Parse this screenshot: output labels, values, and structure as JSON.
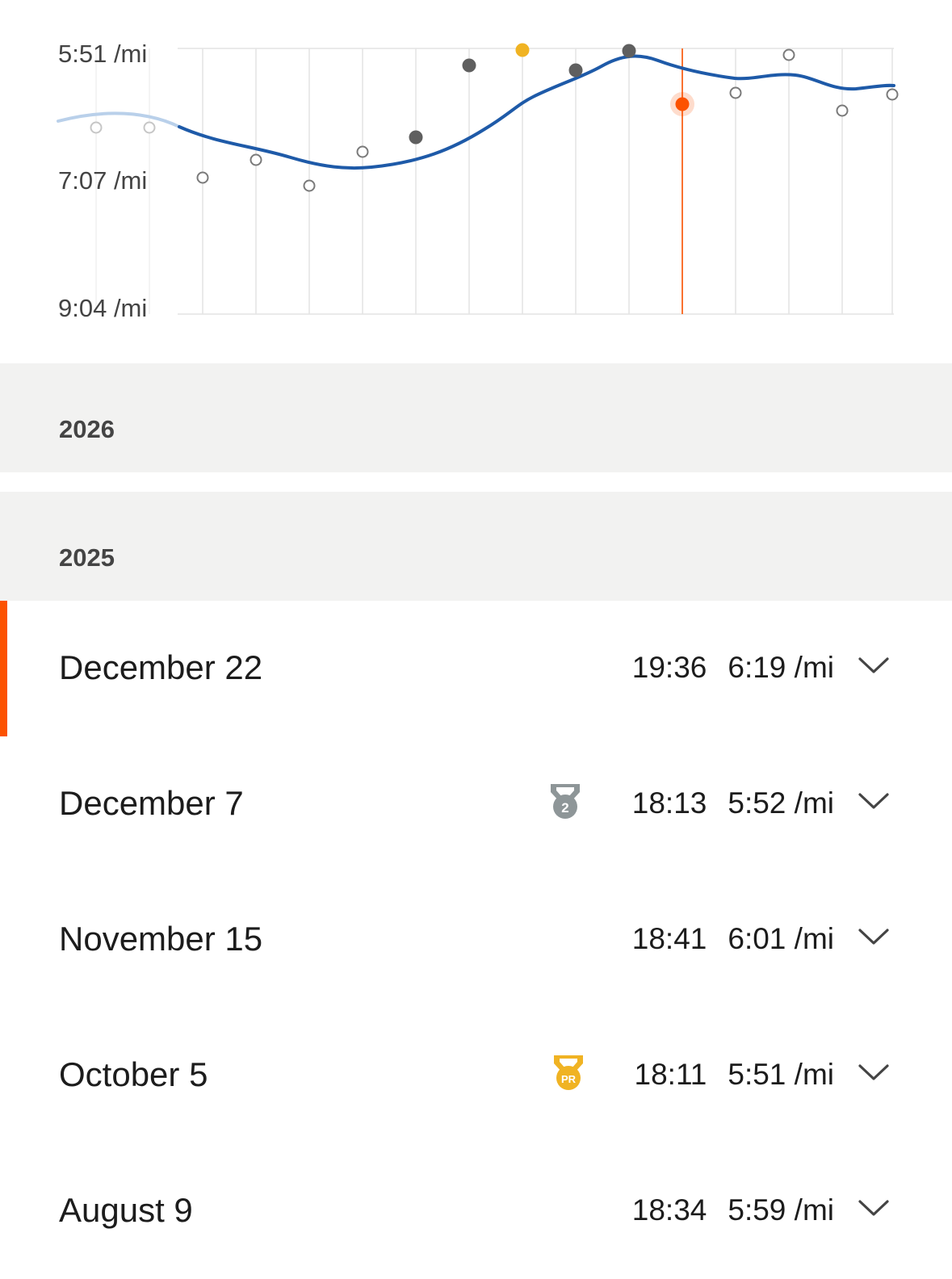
{
  "chart": {
    "y_labels": [
      "5:51 /mi",
      "7:07 /mi",
      "9:04 /mi"
    ],
    "colors": {
      "trend_line": "#1e5aa8",
      "trend_line_faded": "#b9d0ea",
      "grid": "#e4e4e4",
      "selected": "#fc5200",
      "pr_point": "#f0b323",
      "filled_point": "#5f5f5f",
      "open_point": "#7a7a7a"
    }
  },
  "chart_data": {
    "type": "scatter",
    "y_tick_labels": [
      "5:51 /mi",
      "7:07 /mi",
      "9:04 /mi"
    ],
    "y_axis_inverted": true,
    "grid": true,
    "points": [
      {
        "kind": "faded-open"
      },
      {
        "kind": "faded-open"
      },
      {
        "kind": "open"
      },
      {
        "kind": "open"
      },
      {
        "kind": "open"
      },
      {
        "kind": "open"
      },
      {
        "kind": "filled"
      },
      {
        "kind": "filled"
      },
      {
        "kind": "pr"
      },
      {
        "kind": "filled"
      },
      {
        "kind": "filled"
      },
      {
        "kind": "selected"
      },
      {
        "kind": "open"
      },
      {
        "kind": "open"
      },
      {
        "kind": "open"
      },
      {
        "kind": "open"
      }
    ],
    "series": [
      {
        "name": "",
        "type": "smoothed-trend-line"
      }
    ]
  },
  "years": [
    "2026",
    "2025"
  ],
  "efforts": [
    {
      "date": "December 22",
      "time": "19:36",
      "pace": "6:19 /mi",
      "medal": "",
      "selected": true
    },
    {
      "date": "December 7",
      "time": "18:13",
      "pace": "5:52 /mi",
      "medal": "2",
      "selected": false
    },
    {
      "date": "November 15",
      "time": "18:41",
      "pace": "6:01 /mi",
      "medal": "",
      "selected": false
    },
    {
      "date": "October 5",
      "time": "18:11",
      "pace": "5:51 /mi",
      "medal": "PR",
      "selected": false
    },
    {
      "date": "August 9",
      "time": "18:34",
      "pace": "5:59 /mi",
      "medal": "",
      "selected": false
    }
  ],
  "icons": {
    "expand": "chevron-down-icon",
    "silver_medal": "medal-2-icon",
    "pr_medal": "medal-pr-icon"
  }
}
